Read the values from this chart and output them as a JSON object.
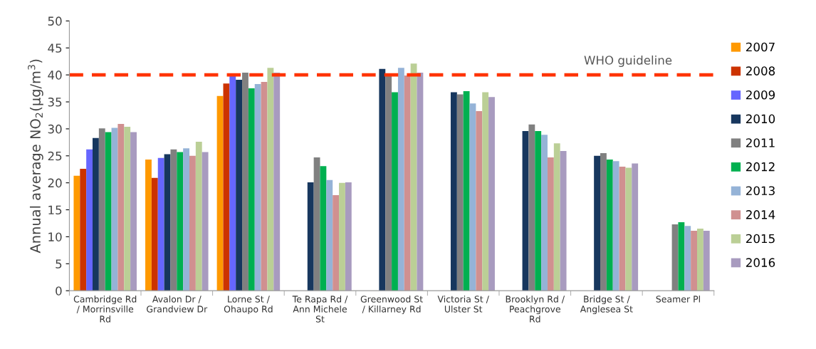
{
  "chart_data": {
    "type": "bar",
    "ylabel": "Annual average NO$_{2}$(µg/m$^{3}$)",
    "categories": [
      "Cambridge Rd / Morrinsville Rd",
      "Avalon Dr / Grandview Dr",
      "Lorne St / Ohaupo Rd",
      "Te Rapa Rd / Ann Michele St",
      "Greenwood St / Killarney Rd",
      "Victoria St / Ulster St",
      "Brooklyn Rd / Peachgrove Rd",
      "Bridge St / Anglesea St",
      "Seamer Pl"
    ],
    "series": [
      {
        "name": "2007",
        "color": "#ff9900",
        "values": [
          21.3,
          24.3,
          36.1,
          null,
          null,
          null,
          null,
          null,
          null
        ]
      },
      {
        "name": "2008",
        "color": "#cc3300",
        "values": [
          22.6,
          20.9,
          38.4,
          null,
          null,
          null,
          null,
          null,
          null
        ]
      },
      {
        "name": "2009",
        "color": "#6666ff",
        "values": [
          26.2,
          24.6,
          39.9,
          null,
          null,
          null,
          null,
          null,
          null
        ]
      },
      {
        "name": "2010",
        "color": "#17375e",
        "values": [
          28.3,
          25.3,
          39.1,
          20.1,
          41.1,
          36.8,
          29.6,
          25.0,
          null
        ]
      },
      {
        "name": "2011",
        "color": "#808080",
        "values": [
          30.1,
          26.2,
          40.4,
          24.7,
          40.0,
          36.4,
          30.8,
          25.5,
          12.3
        ]
      },
      {
        "name": "2012",
        "color": "#00b050",
        "values": [
          29.4,
          25.7,
          37.5,
          23.1,
          36.8,
          37.0,
          29.6,
          24.3,
          12.7
        ]
      },
      {
        "name": "2013",
        "color": "#95b3d7",
        "values": [
          30.2,
          26.4,
          38.3,
          20.5,
          41.3,
          34.7,
          28.9,
          24.0,
          12.0
        ]
      },
      {
        "name": "2014",
        "color": "#d09090",
        "values": [
          30.9,
          25.0,
          38.7,
          17.7,
          39.9,
          33.3,
          24.7,
          23.0,
          11.1
        ]
      },
      {
        "name": "2015",
        "color": "#bbcf96",
        "values": [
          30.4,
          27.6,
          41.3,
          20.0,
          42.1,
          36.8,
          27.3,
          22.8,
          11.5
        ]
      },
      {
        "name": "2016",
        "color": "#a89bbf",
        "values": [
          29.4,
          25.7,
          40.4,
          20.1,
          40.4,
          35.9,
          25.9,
          23.6,
          11.1
        ]
      }
    ],
    "ylim": [
      0,
      50
    ],
    "yticks": [
      0,
      5,
      10,
      15,
      20,
      25,
      30,
      35,
      40,
      45,
      50
    ],
    "ref_lines": [
      {
        "axis": "y",
        "value": 40,
        "label": "WHO guideline",
        "color": "#ff3300",
        "line_style": "dashed"
      }
    ],
    "legend": "right",
    "grid": false
  }
}
